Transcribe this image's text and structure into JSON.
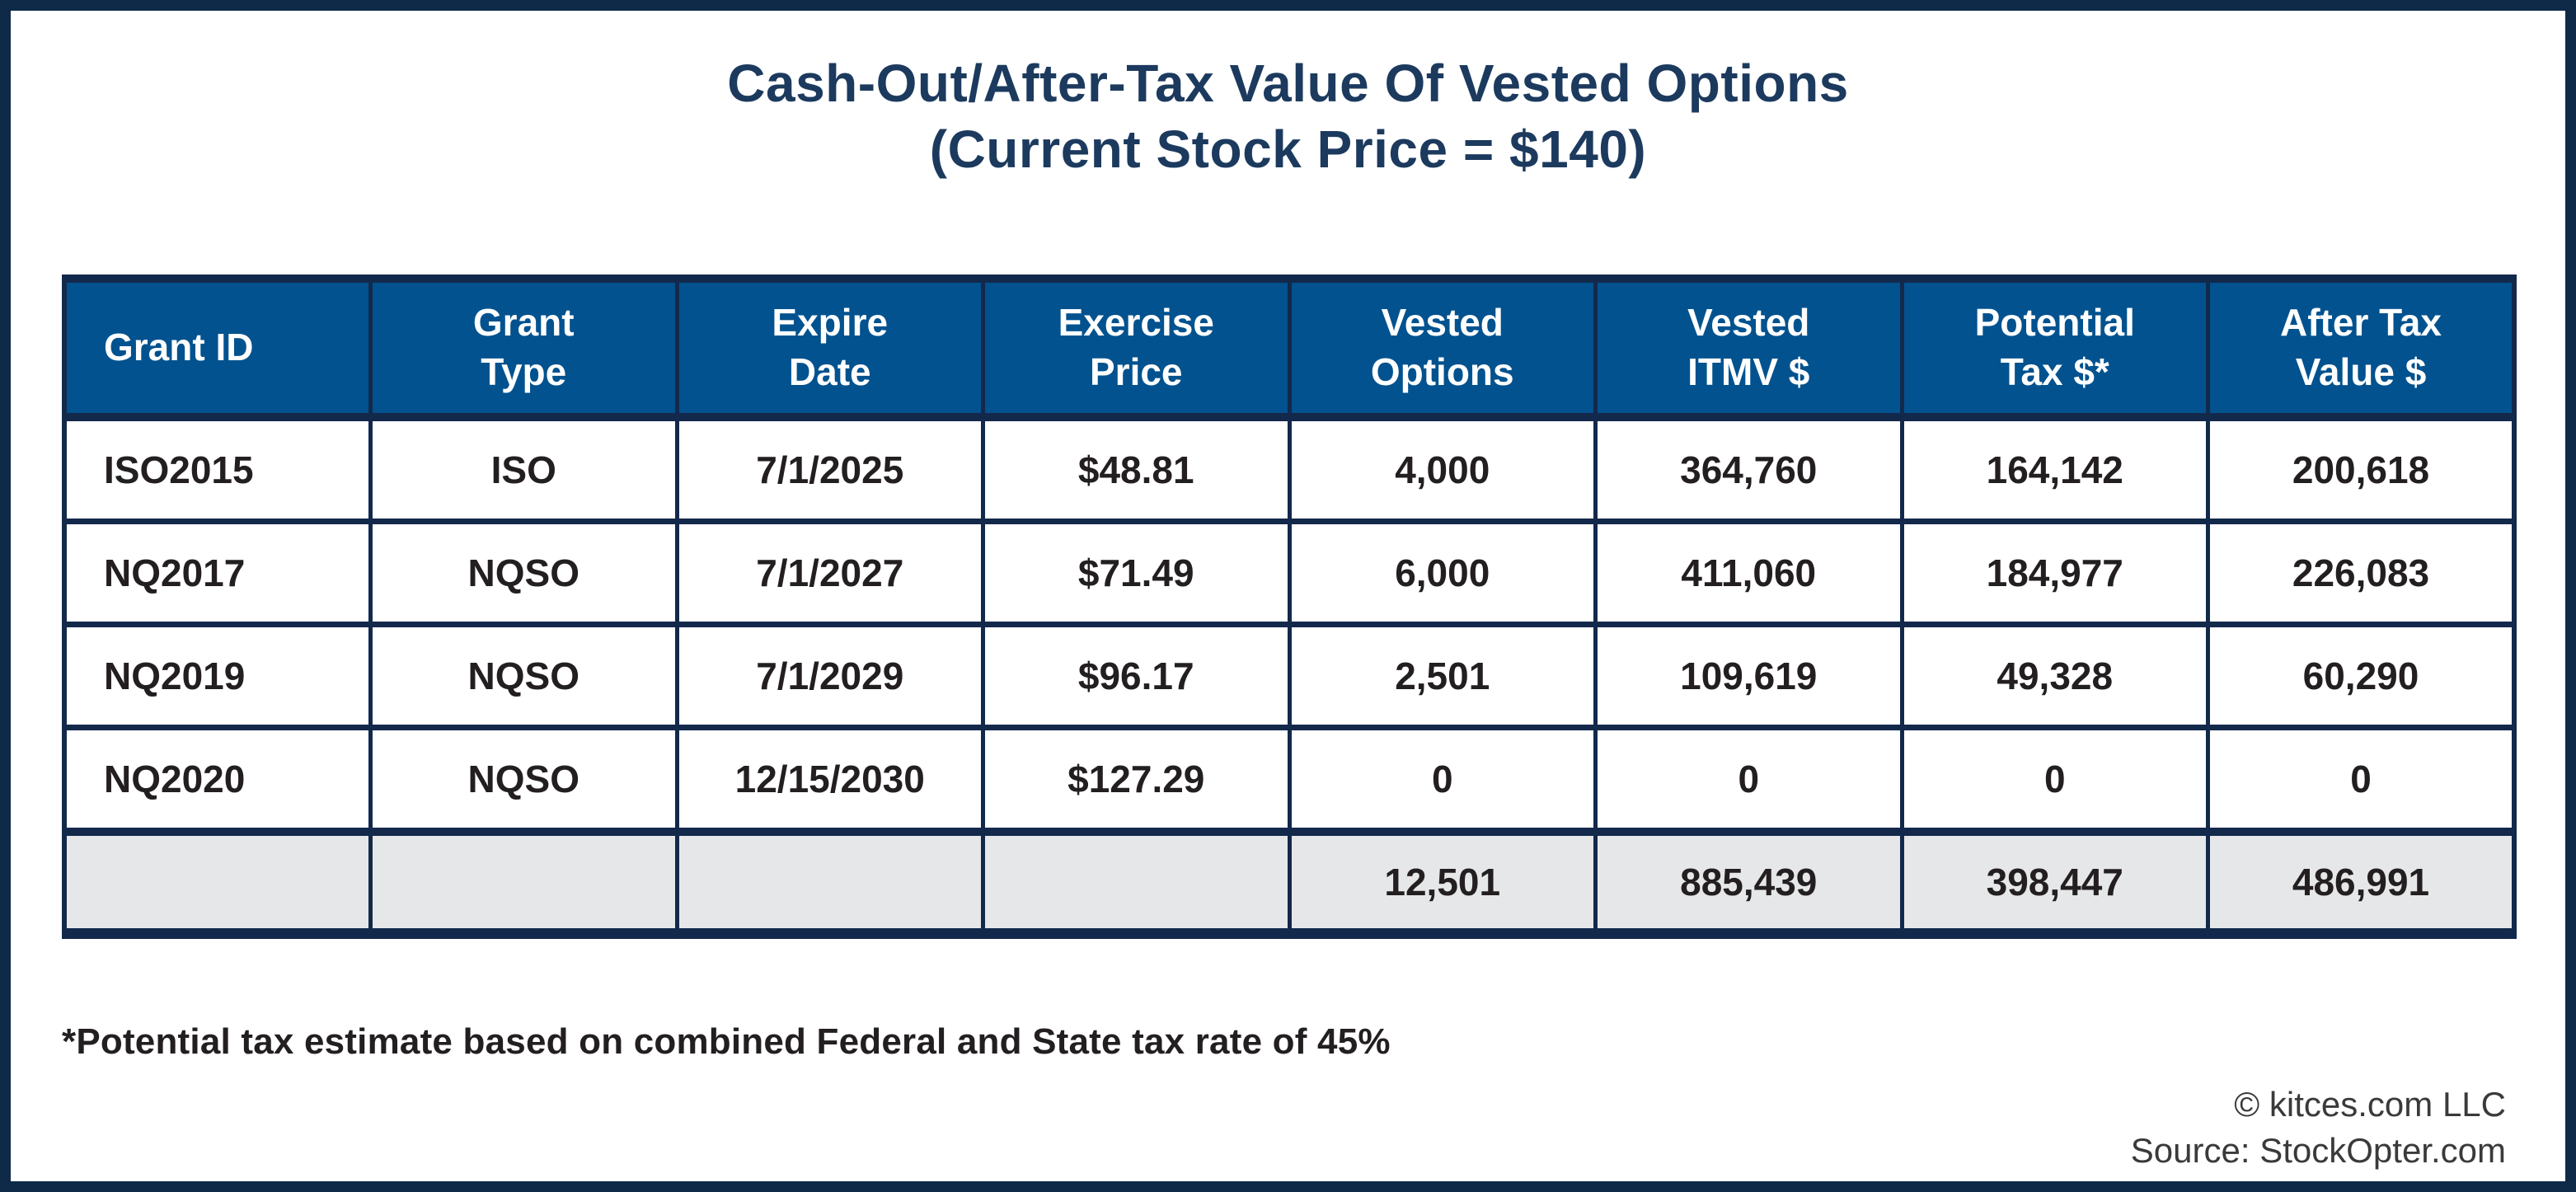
{
  "title": {
    "line1": "Cash-Out/After-Tax Value Of Vested Options",
    "line2": "(Current Stock Price = $140)"
  },
  "table": {
    "headers": [
      [
        "Grant ID"
      ],
      [
        "Grant",
        "Type"
      ],
      [
        "Expire",
        "Date"
      ],
      [
        "Exercise",
        "Price"
      ],
      [
        "Vested",
        "Options"
      ],
      [
        "Vested",
        "ITMV $"
      ],
      [
        "Potential",
        "Tax $*"
      ],
      [
        "After Tax",
        "Value $"
      ]
    ],
    "rows": [
      [
        "ISO2015",
        "ISO",
        "7/1/2025",
        "$48.81",
        "4,000",
        "364,760",
        "164,142",
        "200,618"
      ],
      [
        "NQ2017",
        "NQSO",
        "7/1/2027",
        "$71.49",
        "6,000",
        "411,060",
        "184,977",
        "226,083"
      ],
      [
        "NQ2019",
        "NQSO",
        "7/1/2029",
        "$96.17",
        "2,501",
        "109,619",
        "49,328",
        "60,290"
      ],
      [
        "NQ2020",
        "NQSO",
        "12/15/2030",
        "$127.29",
        "0",
        "0",
        "0",
        "0"
      ]
    ],
    "totals": [
      "",
      "",
      "",
      "",
      "12,501",
      "885,439",
      "398,447",
      "486,991"
    ]
  },
  "footnote": "*Potential tax estimate based on combined Federal and State tax rate of 45%",
  "credits": {
    "line1": "© kitces.com LLC",
    "line2": "Source: StockOpter.com"
  },
  "colors": {
    "frame_navy": "#0F2A48",
    "border_navy": "#13294B",
    "header_bg": "#02528F",
    "header_text": "#FFFFFF",
    "title_navy": "#1C3A5E",
    "body_text": "#231F20",
    "totals_bg": "#E6E7E8"
  },
  "chart_data": {
    "type": "table",
    "title": "Cash-Out/After-Tax Value Of Vested Options (Current Stock Price = $140)",
    "columns": [
      "Grant ID",
      "Grant Type",
      "Expire Date",
      "Exercise Price",
      "Vested Options",
      "Vested ITMV $",
      "Potential Tax $*",
      "After Tax Value $"
    ],
    "rows": [
      [
        "ISO2015",
        "ISO",
        "7/1/2025",
        "$48.81",
        4000,
        364760,
        164142,
        200618
      ],
      [
        "NQ2017",
        "NQSO",
        "7/1/2027",
        "$71.49",
        6000,
        411060,
        184977,
        226083
      ],
      [
        "NQ2019",
        "NQSO",
        "7/1/2029",
        "$96.17",
        2501,
        109619,
        49328,
        60290
      ],
      [
        "NQ2020",
        "NQSO",
        "12/15/2030",
        "$127.29",
        0,
        0,
        0,
        0
      ]
    ],
    "totals_row": [
      null,
      null,
      null,
      null,
      12501,
      885439,
      398447,
      486991
    ],
    "footnote": "*Potential tax estimate based on combined Federal and State tax rate of 45%",
    "source": "Source: StockOpter.com"
  }
}
